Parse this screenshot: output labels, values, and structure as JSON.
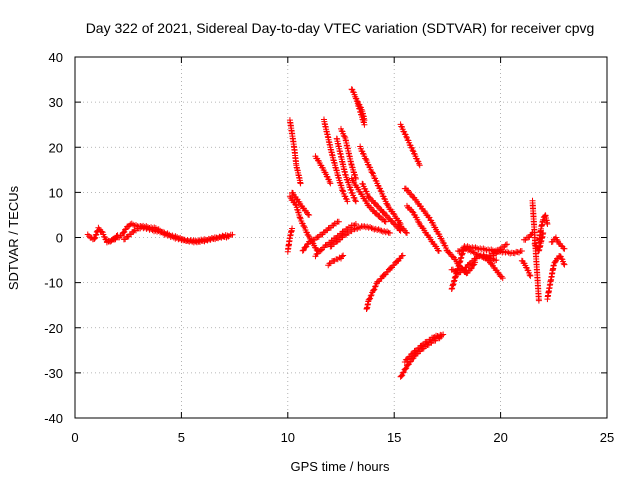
{
  "chart_data": {
    "type": "scatter",
    "title": "Day 322 of 2021, Sidereal Day-to-day VTEC variation (SDTVAR) for receiver cpvg",
    "xlabel": "GPS time / hours",
    "ylabel": "SDTVAR / TECUs",
    "xlim": [
      0,
      25
    ],
    "ylim": [
      -40,
      40
    ],
    "xticks": [
      "0",
      "5",
      "10",
      "15",
      "20",
      "25"
    ],
    "yticks": [
      "40",
      "30",
      "20",
      "10",
      "0",
      "-10",
      "-20",
      "-30",
      "-40"
    ],
    "grid": true,
    "marker": "+",
    "color": "#ff0000",
    "tracks": [
      [
        [
          0.6,
          0.5
        ],
        [
          0.9,
          -0.5
        ],
        [
          1.1,
          2.0
        ],
        [
          1.3,
          1.0
        ],
        [
          1.5,
          -1.0
        ],
        [
          1.8,
          -0.5
        ],
        [
          2.0,
          0.5
        ]
      ],
      [
        [
          1.5,
          -1.0
        ],
        [
          1.9,
          -0.3
        ],
        [
          2.2,
          0.5
        ],
        [
          2.4,
          2.0
        ],
        [
          2.6,
          3.0
        ],
        [
          3.0,
          2.5
        ],
        [
          3.5,
          1.8
        ],
        [
          4.0,
          1.2
        ],
        [
          4.5,
          0.2
        ],
        [
          5.0,
          -0.5
        ],
        [
          5.5,
          -0.8
        ],
        [
          6.0,
          -0.6
        ],
        [
          6.5,
          -0.2
        ],
        [
          7.0,
          0.3
        ],
        [
          7.4,
          0.6
        ]
      ],
      [
        [
          2.3,
          -0.5
        ],
        [
          2.8,
          1.5
        ],
        [
          3.2,
          2.5
        ],
        [
          3.8,
          2.0
        ],
        [
          4.2,
          1.0
        ],
        [
          4.8,
          0.0
        ],
        [
          5.3,
          -0.8
        ],
        [
          5.8,
          -1.0
        ],
        [
          6.3,
          -0.5
        ],
        [
          6.8,
          0.0
        ],
        [
          7.2,
          0.2
        ]
      ],
      [
        [
          10.0,
          -3.0
        ],
        [
          10.1,
          0.0
        ],
        [
          10.2,
          2.0
        ]
      ],
      [
        [
          10.1,
          26.0
        ],
        [
          10.3,
          20.0
        ],
        [
          10.4,
          16.0
        ],
        [
          10.6,
          12.0
        ]
      ],
      [
        [
          10.1,
          9.0
        ],
        [
          10.4,
          7.0
        ],
        [
          10.6,
          4.0
        ],
        [
          10.8,
          2.0
        ],
        [
          11.0,
          0.0
        ],
        [
          11.2,
          -1.5
        ],
        [
          11.4,
          -3.0
        ]
      ],
      [
        [
          10.2,
          10.0
        ],
        [
          10.5,
          8.0
        ],
        [
          10.8,
          6.0
        ],
        [
          11.0,
          5.0
        ]
      ],
      [
        [
          10.7,
          -3.0
        ],
        [
          11.0,
          -1.0
        ],
        [
          11.4,
          0.0
        ],
        [
          11.8,
          1.5
        ],
        [
          12.2,
          3.0
        ],
        [
          12.4,
          3.5
        ]
      ],
      [
        [
          11.3,
          -4.0
        ],
        [
          11.6,
          -2.5
        ],
        [
          12.0,
          -1.0
        ],
        [
          12.4,
          0.5
        ],
        [
          12.8,
          2.0
        ],
        [
          13.2,
          3.0
        ]
      ],
      [
        [
          11.3,
          18.0
        ],
        [
          11.5,
          16.5
        ],
        [
          11.8,
          14.0
        ],
        [
          12.0,
          12.0
        ]
      ],
      [
        [
          11.7,
          26.0
        ],
        [
          11.9,
          22.0
        ],
        [
          12.1,
          18.0
        ],
        [
          12.4,
          13.0
        ],
        [
          12.6,
          10.0
        ],
        [
          12.8,
          8.0
        ]
      ],
      [
        [
          12.3,
          22.0
        ],
        [
          12.5,
          18.0
        ],
        [
          12.7,
          14.0
        ],
        [
          13.0,
          10.0
        ],
        [
          13.2,
          8.0
        ]
      ],
      [
        [
          12.5,
          24.0
        ],
        [
          12.7,
          22.0
        ],
        [
          13.0,
          16.0
        ],
        [
          13.2,
          13.0
        ]
      ],
      [
        [
          13.0,
          33.0
        ],
        [
          13.2,
          31.0
        ],
        [
          13.4,
          28.0
        ],
        [
          13.6,
          25.0
        ]
      ],
      [
        [
          13.3,
          30.0
        ],
        [
          13.5,
          28.0
        ],
        [
          13.6,
          26.0
        ]
      ],
      [
        [
          13.4,
          20.0
        ],
        [
          13.7,
          17.0
        ],
        [
          14.0,
          14.0
        ],
        [
          14.4,
          10.0
        ],
        [
          14.7,
          7.0
        ],
        [
          15.0,
          5.0
        ],
        [
          15.3,
          3.0
        ]
      ],
      [
        [
          13.5,
          12.0
        ],
        [
          13.8,
          9.0
        ],
        [
          14.2,
          7.0
        ],
        [
          14.6,
          5.0
        ],
        [
          15.0,
          3.0
        ],
        [
          15.3,
          1.5
        ]
      ],
      [
        [
          13.0,
          13.0
        ],
        [
          13.4,
          10.0
        ],
        [
          13.8,
          7.0
        ],
        [
          14.2,
          5.0
        ],
        [
          14.6,
          3.5
        ]
      ],
      [
        [
          11.9,
          -6.0
        ],
        [
          12.2,
          -5.0
        ],
        [
          12.5,
          -4.5
        ],
        [
          12.6,
          -4.0
        ]
      ],
      [
        [
          12.0,
          -2.0
        ],
        [
          12.4,
          -0.5
        ],
        [
          12.8,
          1.0
        ],
        [
          13.2,
          2.0
        ],
        [
          13.6,
          2.5
        ],
        [
          14.0,
          2.0
        ],
        [
          14.4,
          1.5
        ],
        [
          14.8,
          1.0
        ]
      ],
      [
        [
          13.7,
          -16.0
        ],
        [
          13.8,
          -14.0
        ],
        [
          14.0,
          -12.0
        ],
        [
          14.2,
          -10.0
        ],
        [
          14.5,
          -8.5
        ],
        [
          14.8,
          -7.0
        ],
        [
          15.1,
          -5.5
        ],
        [
          15.4,
          -4.0
        ]
      ],
      [
        [
          15.2,
          3.0
        ],
        [
          15.4,
          2.0
        ],
        [
          15.6,
          1.0
        ]
      ],
      [
        [
          15.3,
          25.0
        ],
        [
          15.6,
          22.0
        ],
        [
          15.9,
          19.0
        ],
        [
          16.2,
          16.0
        ]
      ],
      [
        [
          15.5,
          11.0
        ],
        [
          15.9,
          9.0
        ],
        [
          16.3,
          6.5
        ],
        [
          16.7,
          4.0
        ],
        [
          17.0,
          1.5
        ],
        [
          17.3,
          -1.0
        ],
        [
          17.5,
          -3.0
        ]
      ],
      [
        [
          15.6,
          7.0
        ],
        [
          15.9,
          5.5
        ],
        [
          16.2,
          3.0
        ],
        [
          16.5,
          1.0
        ],
        [
          16.8,
          -1.0
        ],
        [
          17.1,
          -3.0
        ]
      ],
      [
        [
          15.3,
          -31.0
        ],
        [
          15.6,
          -28.5
        ],
        [
          16.0,
          -26.0
        ],
        [
          16.5,
          -24.0
        ],
        [
          17.0,
          -22.5
        ],
        [
          17.2,
          -22.0
        ]
      ],
      [
        [
          15.5,
          -27.5
        ],
        [
          15.9,
          -25.5
        ],
        [
          16.4,
          -23.5
        ],
        [
          16.9,
          -22.0
        ],
        [
          17.3,
          -21.5
        ]
      ],
      [
        [
          17.5,
          -3.0
        ],
        [
          17.8,
          -4.5
        ],
        [
          18.1,
          -6.5
        ],
        [
          18.4,
          -8.0
        ],
        [
          18.6,
          -7.0
        ],
        [
          18.8,
          -5.5
        ]
      ],
      [
        [
          17.7,
          -7.0
        ],
        [
          18.0,
          -8.0
        ],
        [
          18.3,
          -7.0
        ],
        [
          18.6,
          -5.5
        ],
        [
          19.0,
          -4.0
        ],
        [
          19.4,
          -4.5
        ],
        [
          19.8,
          -5.0
        ]
      ],
      [
        [
          18.0,
          -3.0
        ],
        [
          18.4,
          -2.5
        ],
        [
          18.8,
          -3.5
        ],
        [
          19.2,
          -4.5
        ],
        [
          19.6,
          -4.0
        ],
        [
          20.0,
          -3.0
        ]
      ],
      [
        [
          19.2,
          -4.0
        ],
        [
          19.6,
          -6.0
        ],
        [
          19.9,
          -8.0
        ],
        [
          20.1,
          -9.0
        ]
      ],
      [
        [
          19.6,
          -3.5
        ],
        [
          20.0,
          -2.5
        ],
        [
          20.3,
          -1.5
        ]
      ],
      [
        [
          17.7,
          -11.5
        ],
        [
          18.3,
          -2.0
        ],
        [
          20.6,
          -3.5
        ],
        [
          21.0,
          -3.0
        ]
      ],
      [
        [
          21.0,
          -5.0
        ],
        [
          21.2,
          -6.5
        ],
        [
          21.4,
          -8.5
        ]
      ],
      [
        [
          21.1,
          -0.5
        ],
        [
          21.3,
          0.0
        ],
        [
          21.5,
          1.0
        ]
      ],
      [
        [
          21.5,
          8.0
        ],
        [
          21.8,
          -14.0
        ]
      ],
      [
        [
          21.8,
          -1.0
        ],
        [
          21.9,
          2.0
        ],
        [
          22.0,
          4.0
        ],
        [
          22.1,
          5.0
        ],
        [
          22.2,
          3.0
        ]
      ],
      [
        [
          21.6,
          -1.5
        ],
        [
          21.8,
          -3.0
        ],
        [
          21.9,
          -1.0
        ],
        [
          22.0,
          1.0
        ]
      ],
      [
        [
          22.2,
          -13.5
        ],
        [
          22.3,
          -11.0
        ],
        [
          22.4,
          -8.5
        ],
        [
          22.5,
          -6.0
        ],
        [
          22.6,
          -5.0
        ],
        [
          22.8,
          -4.0
        ],
        [
          23.0,
          -6.0
        ]
      ],
      [
        [
          22.4,
          -1.0
        ],
        [
          22.6,
          0.0
        ],
        [
          22.7,
          -1.0
        ],
        [
          22.9,
          -2.0
        ],
        [
          23.0,
          -2.5
        ]
      ]
    ]
  }
}
